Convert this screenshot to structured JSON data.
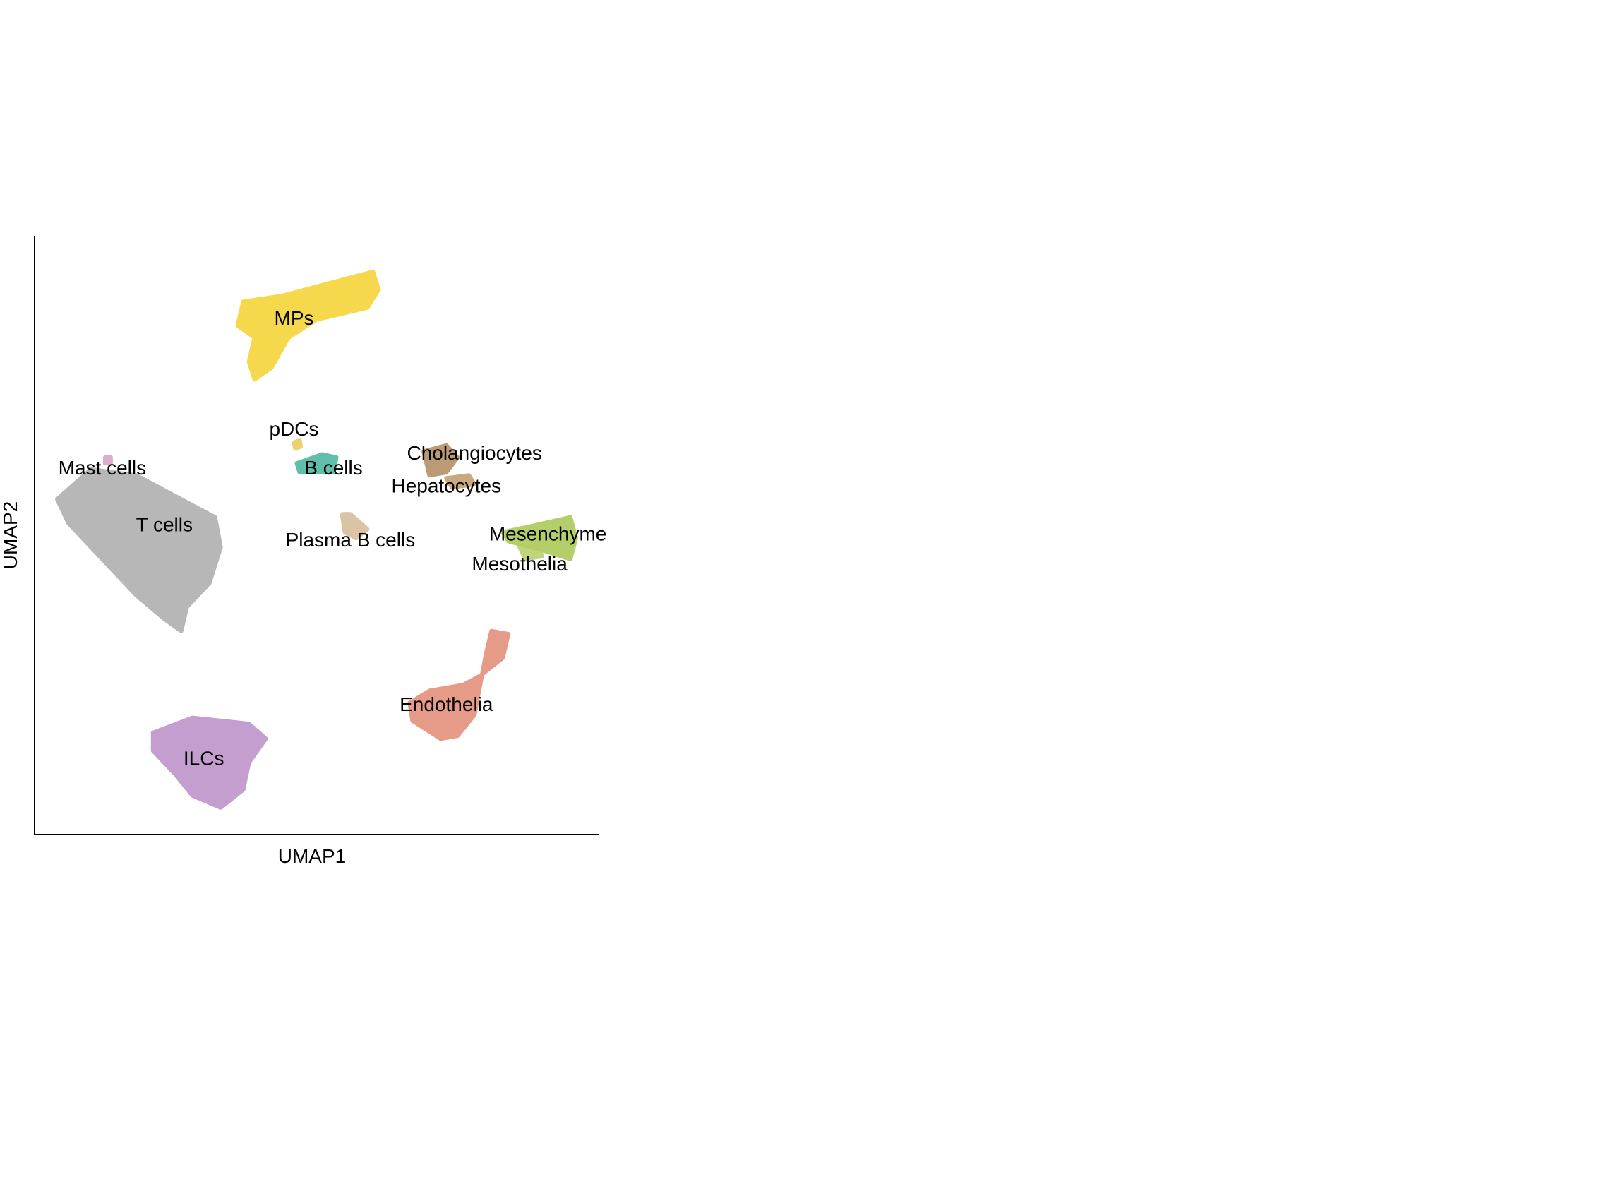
{
  "chart_data": {
    "type": "scatter",
    "title": "",
    "xlabel": "UMAP1",
    "ylabel": "UMAP2",
    "xlim": [
      0,
      10
    ],
    "ylim": [
      0,
      10
    ],
    "grid": false,
    "legend": "none",
    "series": [
      {
        "name": "MPs",
        "color": "#F5D22E",
        "label_at": [
          4.6,
          8.6
        ],
        "region": [
          [
            3.7,
            8.9
          ],
          [
            4.4,
            9.0
          ],
          [
            5.2,
            9.2
          ],
          [
            6.0,
            9.4
          ],
          [
            6.1,
            9.1
          ],
          [
            5.9,
            8.8
          ],
          [
            5.0,
            8.6
          ],
          [
            4.5,
            8.3
          ],
          [
            4.2,
            7.8
          ],
          [
            3.9,
            7.6
          ],
          [
            3.8,
            7.9
          ],
          [
            3.9,
            8.3
          ],
          [
            3.6,
            8.5
          ]
        ]
      },
      {
        "name": "pDCs",
        "color": "#E8C95A",
        "label_at": [
          4.6,
          6.75
        ],
        "region": [
          [
            4.6,
            6.55
          ],
          [
            4.7,
            6.58
          ],
          [
            4.72,
            6.48
          ],
          [
            4.62,
            6.45
          ]
        ]
      },
      {
        "name": "B cells",
        "color": "#45B39D",
        "label_at": [
          5.3,
          6.1
        ],
        "region": [
          [
            4.65,
            6.2
          ],
          [
            5.1,
            6.35
          ],
          [
            5.35,
            6.3
          ],
          [
            5.3,
            6.05
          ],
          [
            4.9,
            6.05
          ],
          [
            4.7,
            6.05
          ]
        ]
      },
      {
        "name": "Cholangiocytes",
        "color": "#B08A5E",
        "label_at": [
          7.8,
          6.35
        ],
        "region": [
          [
            6.9,
            6.4
          ],
          [
            7.3,
            6.5
          ],
          [
            7.5,
            6.3
          ],
          [
            7.3,
            6.05
          ],
          [
            7.0,
            6.0
          ],
          [
            6.95,
            6.2
          ]
        ]
      },
      {
        "name": "Hepatocytes",
        "color": "#C19A6B",
        "label_at": [
          7.3,
          5.8
        ],
        "region": [
          [
            7.3,
            5.95
          ],
          [
            7.7,
            6.0
          ],
          [
            7.8,
            5.85
          ],
          [
            7.4,
            5.8
          ]
        ]
      },
      {
        "name": "Mast cells",
        "color": "#D7A1C3",
        "label_at": [
          1.2,
          6.1
        ],
        "region": [
          [
            1.25,
            6.3
          ],
          [
            1.35,
            6.3
          ],
          [
            1.35,
            6.2
          ],
          [
            1.25,
            6.2
          ]
        ]
      },
      {
        "name": "T cells",
        "color": "#ABABAB",
        "label_at": [
          2.3,
          5.15
        ],
        "region": [
          [
            0.4,
            5.6
          ],
          [
            1.0,
            6.1
          ],
          [
            1.8,
            6.0
          ],
          [
            2.6,
            5.6
          ],
          [
            3.2,
            5.3
          ],
          [
            3.3,
            4.8
          ],
          [
            3.1,
            4.2
          ],
          [
            2.7,
            3.8
          ],
          [
            2.6,
            3.4
          ],
          [
            2.3,
            3.6
          ],
          [
            1.8,
            4.0
          ],
          [
            1.2,
            4.6
          ],
          [
            0.6,
            5.2
          ]
        ]
      },
      {
        "name": "Plasma B cells",
        "color": "#D4BA96",
        "label_at": [
          5.6,
          4.9
        ],
        "region": [
          [
            5.45,
            5.35
          ],
          [
            5.6,
            5.35
          ],
          [
            5.9,
            5.1
          ],
          [
            5.7,
            4.95
          ],
          [
            5.5,
            5.05
          ]
        ]
      },
      {
        "name": "Mesenchyme",
        "color": "#A8C74F",
        "label_at": [
          9.1,
          5.0
        ],
        "region": [
          [
            8.3,
            5.05
          ],
          [
            8.8,
            5.15
          ],
          [
            9.5,
            5.3
          ],
          [
            9.6,
            4.95
          ],
          [
            9.5,
            4.6
          ],
          [
            9.0,
            4.75
          ],
          [
            8.4,
            4.9
          ]
        ]
      },
      {
        "name": "Mesothelia",
        "color": "#B6CC67",
        "label_at": [
          8.6,
          4.5
        ],
        "region": [
          [
            8.6,
            4.8
          ],
          [
            8.9,
            4.85
          ],
          [
            9.0,
            4.65
          ],
          [
            8.7,
            4.6
          ]
        ]
      },
      {
        "name": "Endothelia",
        "color": "#E28A74",
        "label_at": [
          7.3,
          2.15
        ],
        "region": [
          [
            8.1,
            3.4
          ],
          [
            8.4,
            3.35
          ],
          [
            8.3,
            2.95
          ],
          [
            7.9,
            2.65
          ],
          [
            7.6,
            2.5
          ],
          [
            7.0,
            2.4
          ],
          [
            6.65,
            2.2
          ],
          [
            6.7,
            1.9
          ],
          [
            7.2,
            1.6
          ],
          [
            7.5,
            1.65
          ],
          [
            7.8,
            2.0
          ],
          [
            7.9,
            2.5
          ],
          [
            8.0,
            3.0
          ]
        ]
      },
      {
        "name": "ILCs",
        "color": "#B98EC6",
        "label_at": [
          3.0,
          1.25
        ],
        "region": [
          [
            2.1,
            1.7
          ],
          [
            2.8,
            1.95
          ],
          [
            3.8,
            1.85
          ],
          [
            4.1,
            1.6
          ],
          [
            3.8,
            1.2
          ],
          [
            3.7,
            0.75
          ],
          [
            3.3,
            0.45
          ],
          [
            2.8,
            0.65
          ],
          [
            2.5,
            1.0
          ],
          [
            2.1,
            1.4
          ]
        ]
      }
    ]
  }
}
